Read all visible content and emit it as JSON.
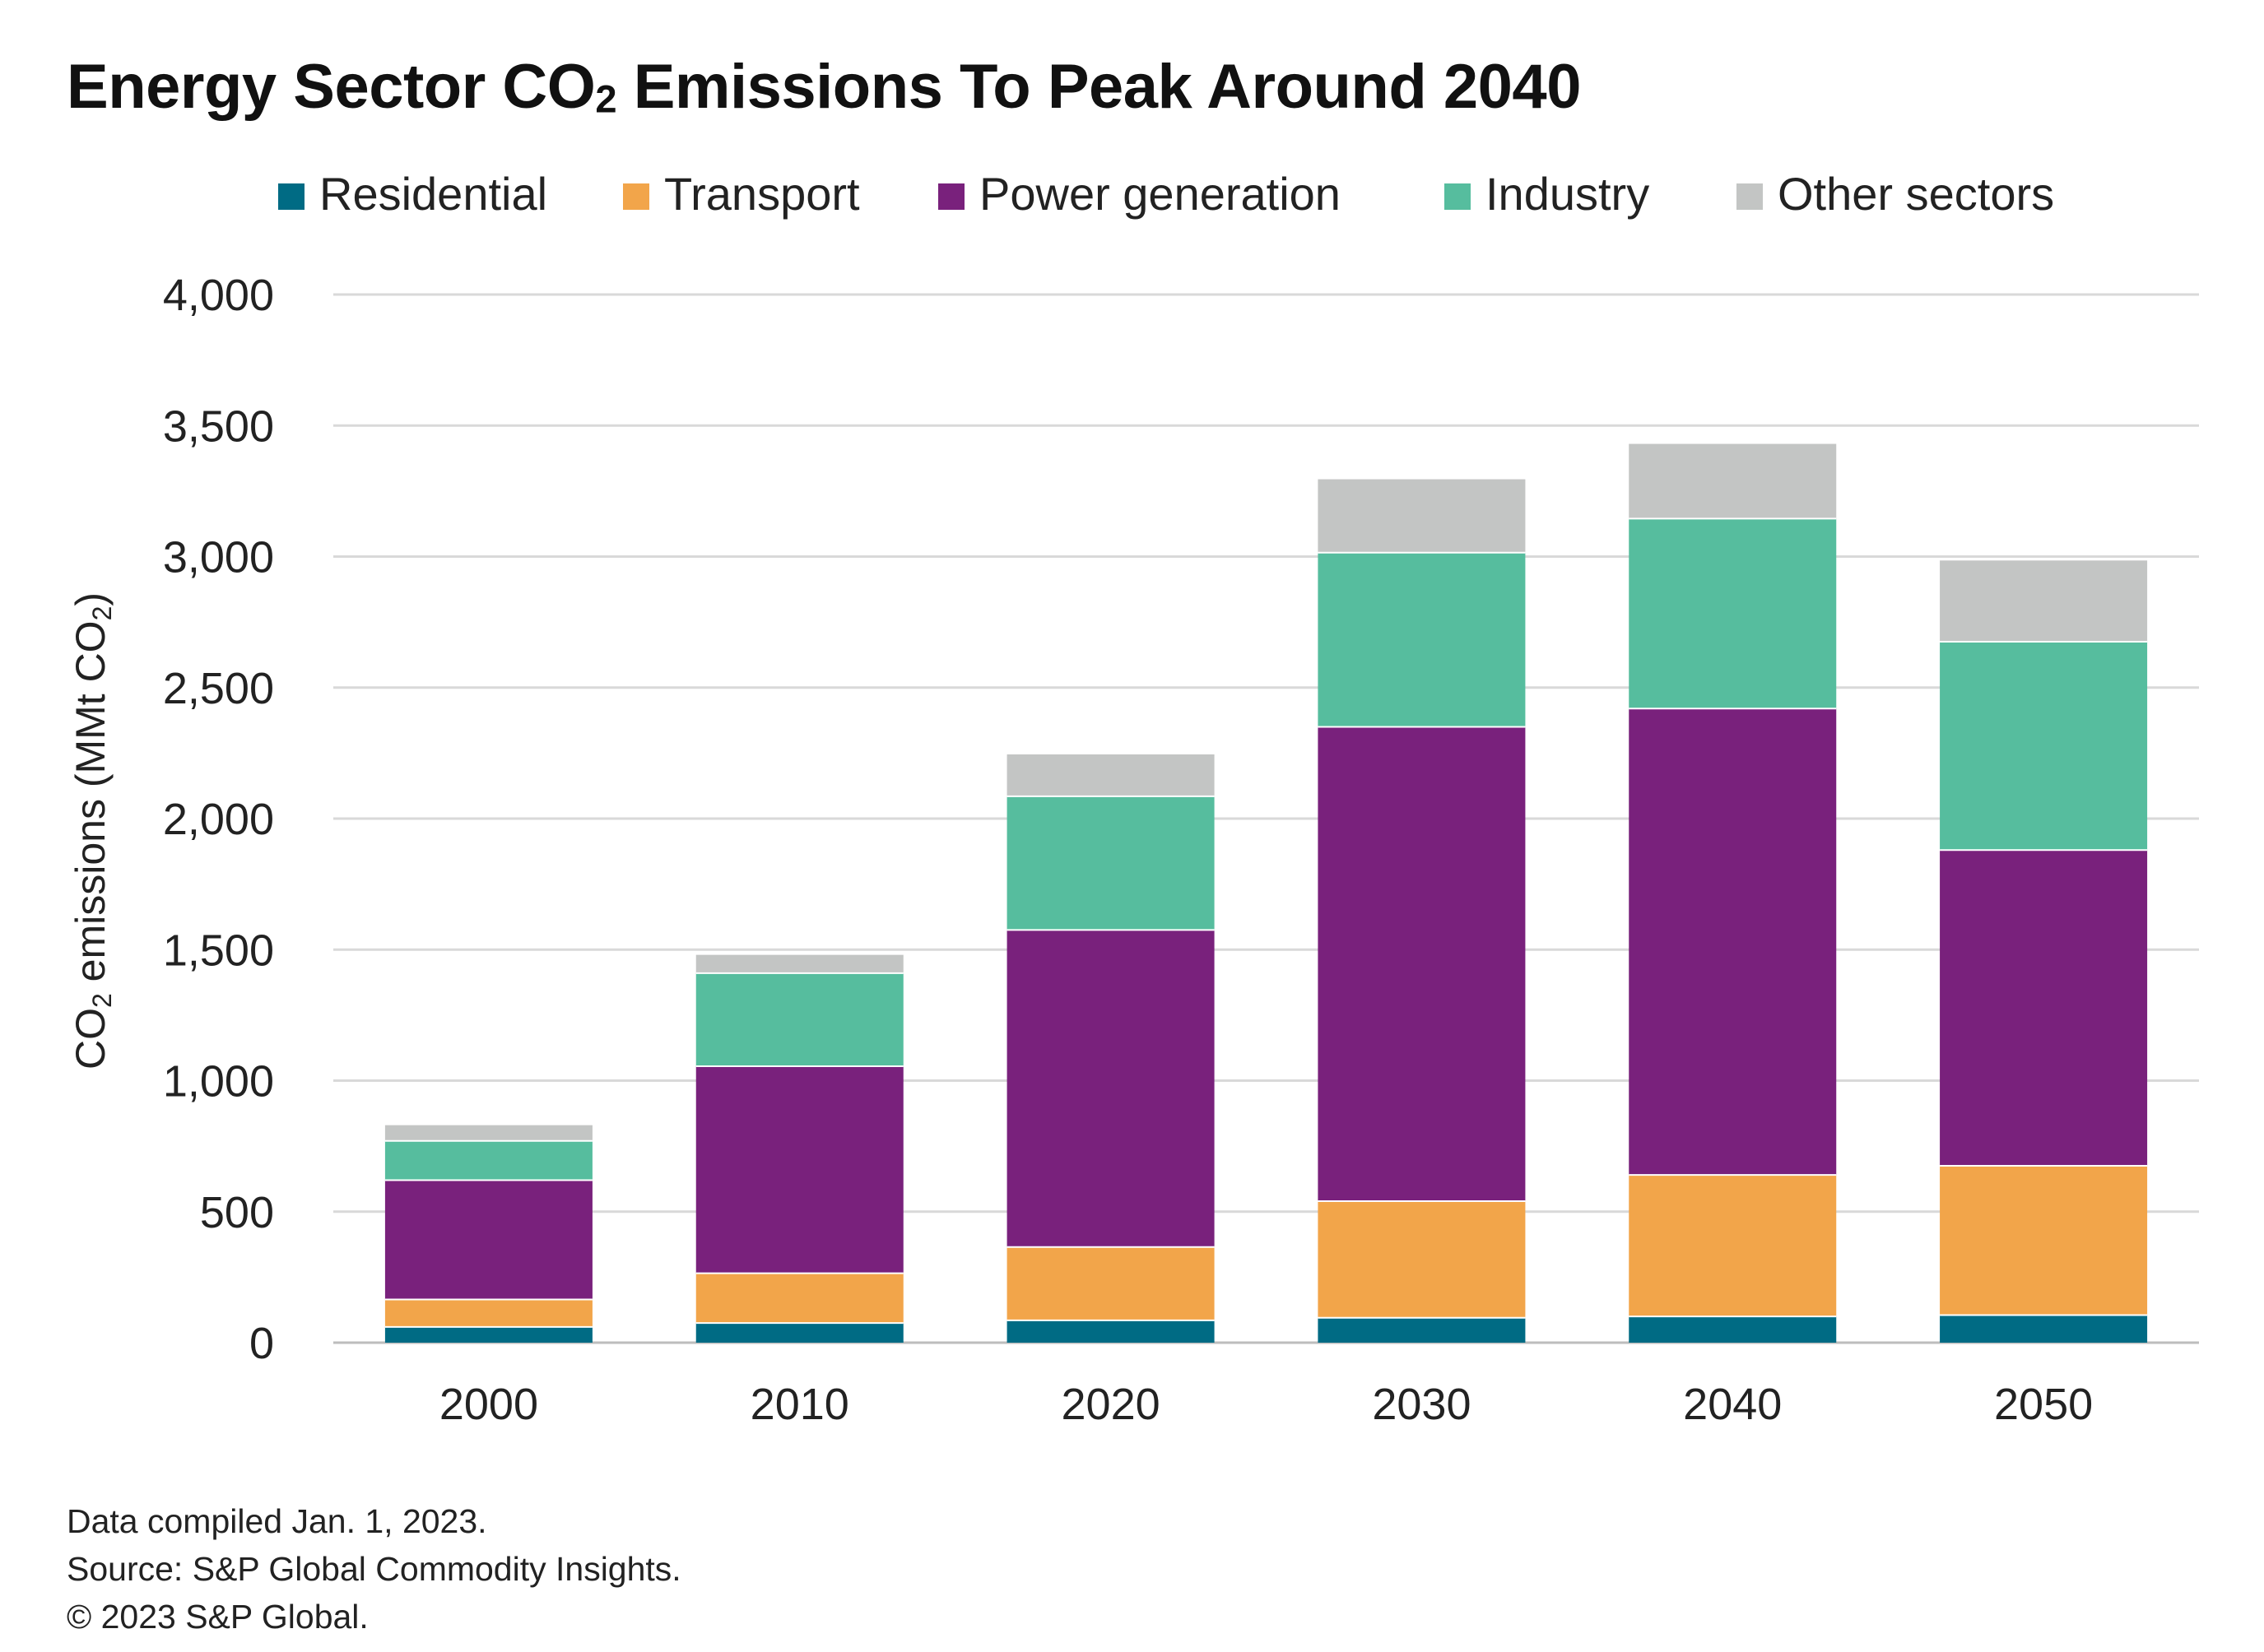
{
  "chart_data": {
    "type": "bar",
    "stacked": true,
    "title_parts": {
      "before_sub": "Energy Sector CO",
      "sub": "2",
      "after_sub": " Emissions To Peak Around 2040"
    },
    "ylabel_parts": {
      "before_sub": "CO",
      "sub": "2",
      "middle": " emissions (MMt CO",
      "sub2": "2",
      "after_sub": ")"
    },
    "categories": [
      "2000",
      "2010",
      "2020",
      "2030",
      "2040",
      "2050"
    ],
    "ylim": [
      0,
      4000
    ],
    "yticks": [
      0,
      500,
      1000,
      1500,
      2000,
      2500,
      3000,
      3500,
      4000
    ],
    "ytick_labels": [
      "0",
      "500",
      "1,000",
      "1,500",
      "2,000",
      "2,500",
      "3,000",
      "3,500",
      "4,000"
    ],
    "grid": true,
    "legend_position": "top",
    "series": [
      {
        "name": "Residential",
        "color": "#006b84",
        "values": [
          60,
          75,
          85,
          95,
          100,
          105
        ]
      },
      {
        "name": "Transport",
        "color": "#f2a54a",
        "values": [
          105,
          190,
          280,
          445,
          540,
          570
        ]
      },
      {
        "name": "Power generation",
        "color": "#79217c",
        "values": [
          455,
          790,
          1210,
          1810,
          1780,
          1205
        ]
      },
      {
        "name": "Industry",
        "color": "#56bd9e",
        "values": [
          150,
          355,
          510,
          665,
          725,
          795
        ]
      },
      {
        "name": "Other sectors",
        "color": "#c3c5c4",
        "values": [
          60,
          70,
          160,
          280,
          285,
          310
        ]
      }
    ]
  },
  "footnotes": {
    "compiled": "Data compiled Jan. 1, 2023.",
    "source": "Source: S&P Global Commodity Insights.",
    "copyright": "© 2023 S&P Global."
  }
}
